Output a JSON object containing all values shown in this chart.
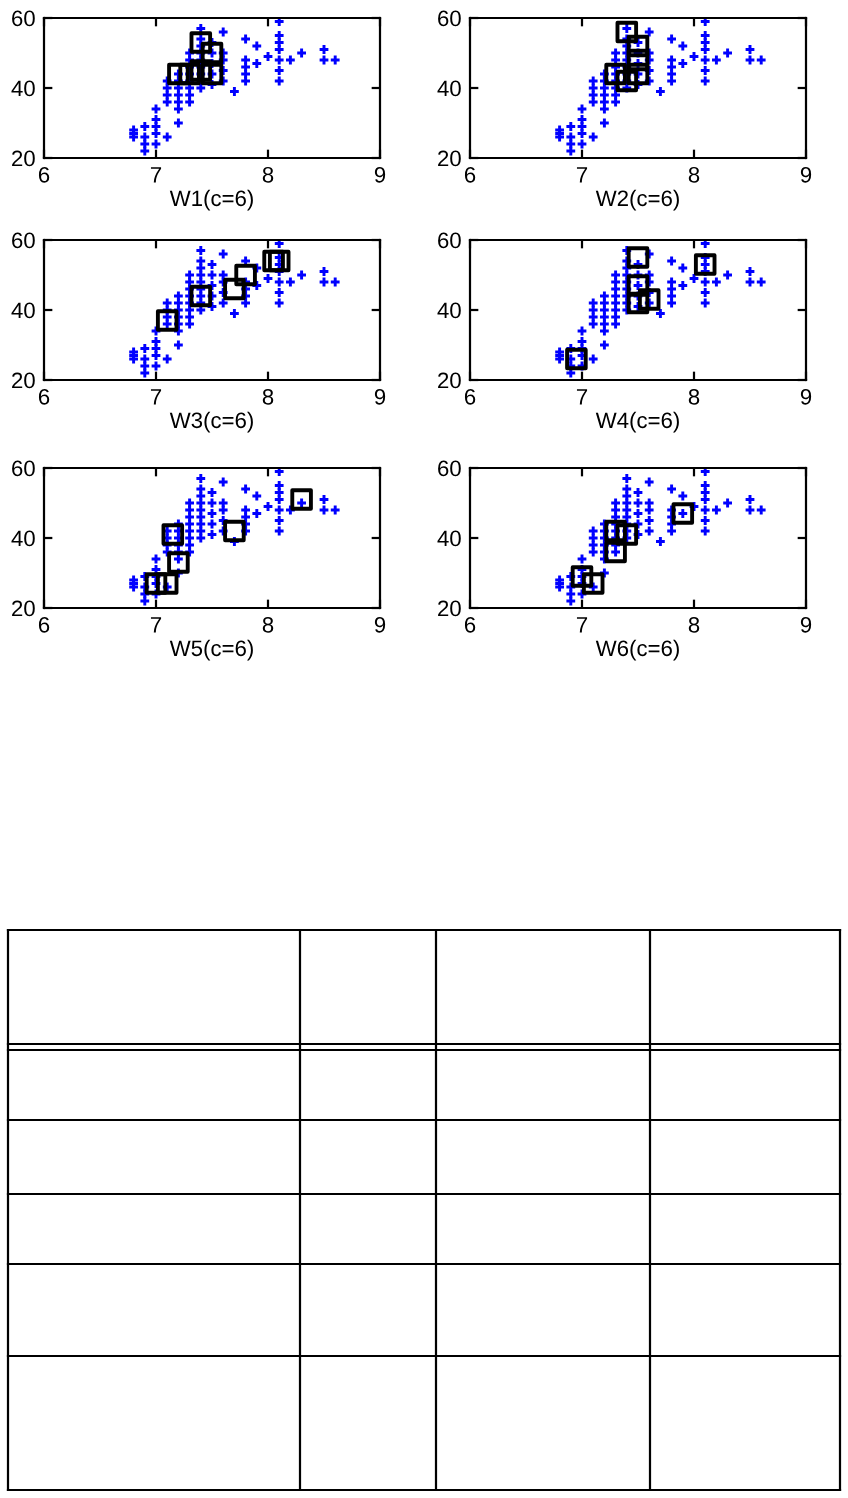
{
  "chart_data": [
    {
      "type": "scatter",
      "xlabel": "W1(c=6)",
      "xlim": [
        6,
        9
      ],
      "ylim": [
        20,
        60
      ],
      "xticks": [
        6,
        7,
        8,
        9
      ],
      "yticks": [
        20,
        40,
        60
      ],
      "grid": false,
      "legend": false,
      "series": [
        {
          "type": "scatter",
          "marker": "cross",
          "color": "#0000ff",
          "x": [
            6.8,
            6.8,
            6.8,
            6.9,
            6.9,
            6.9,
            6.9,
            7.0,
            7.0,
            7.0,
            7.0,
            7.0,
            7.1,
            7.1,
            7.1,
            7.1,
            7.1,
            7.2,
            7.2,
            7.2,
            7.2,
            7.2,
            7.2,
            7.2,
            7.3,
            7.3,
            7.3,
            7.3,
            7.3,
            7.3,
            7.3,
            7.3,
            7.4,
            7.4,
            7.4,
            7.4,
            7.4,
            7.4,
            7.4,
            7.4,
            7.4,
            7.5,
            7.5,
            7.5,
            7.5,
            7.5,
            7.6,
            7.6,
            7.6,
            7.6,
            7.6,
            7.7,
            7.8,
            7.8,
            7.8,
            7.8,
            7.8,
            7.9,
            7.9,
            8.0,
            8.1,
            8.1,
            8.1,
            8.1,
            8.1,
            8.1,
            8.1,
            8.2,
            8.3,
            8.5,
            8.5,
            8.6
          ],
          "values": [
            26,
            27,
            28,
            22,
            24,
            26,
            29,
            24,
            27,
            29,
            31,
            34,
            26,
            36,
            38,
            40,
            42,
            30,
            34,
            36,
            38,
            40,
            42,
            44,
            36,
            38,
            40,
            42,
            44,
            46,
            48,
            50,
            40,
            42,
            44,
            46,
            48,
            50,
            52,
            54,
            57,
            41,
            44,
            47,
            50,
            53,
            42,
            45,
            48,
            50,
            56,
            39,
            42,
            44,
            46,
            48,
            54,
            47,
            52,
            49,
            42,
            45,
            48,
            51,
            53,
            55,
            59,
            48,
            50,
            48,
            51,
            48
          ]
        },
        {
          "type": "scatter",
          "marker": "square",
          "color": "#000000",
          "x": [
            7.4,
            7.5,
            7.2,
            7.3,
            7.4,
            7.5
          ],
          "values": [
            53,
            50,
            44,
            44,
            45,
            44
          ]
        }
      ]
    },
    {
      "type": "scatter",
      "xlabel": "W2(c=6)",
      "xlim": [
        6,
        9
      ],
      "ylim": [
        20,
        60
      ],
      "xticks": [
        6,
        7,
        8,
        9
      ],
      "yticks": [
        20,
        40,
        60
      ],
      "grid": false,
      "legend": false,
      "series": [
        {
          "type": "scatter",
          "marker": "cross",
          "color": "#0000ff",
          "x": [
            6.8,
            6.8,
            6.8,
            6.9,
            6.9,
            6.9,
            6.9,
            7.0,
            7.0,
            7.0,
            7.0,
            7.0,
            7.1,
            7.1,
            7.1,
            7.1,
            7.1,
            7.2,
            7.2,
            7.2,
            7.2,
            7.2,
            7.2,
            7.2,
            7.3,
            7.3,
            7.3,
            7.3,
            7.3,
            7.3,
            7.3,
            7.3,
            7.4,
            7.4,
            7.4,
            7.4,
            7.4,
            7.4,
            7.4,
            7.4,
            7.4,
            7.5,
            7.5,
            7.5,
            7.5,
            7.5,
            7.6,
            7.6,
            7.6,
            7.6,
            7.6,
            7.7,
            7.8,
            7.8,
            7.8,
            7.8,
            7.8,
            7.9,
            7.9,
            8.0,
            8.1,
            8.1,
            8.1,
            8.1,
            8.1,
            8.1,
            8.1,
            8.2,
            8.3,
            8.5,
            8.5,
            8.6
          ],
          "values": [
            26,
            27,
            28,
            22,
            24,
            26,
            29,
            24,
            27,
            29,
            31,
            34,
            26,
            36,
            38,
            40,
            42,
            30,
            34,
            36,
            38,
            40,
            42,
            44,
            36,
            38,
            40,
            42,
            44,
            46,
            48,
            50,
            40,
            42,
            44,
            46,
            48,
            50,
            52,
            54,
            57,
            41,
            44,
            47,
            50,
            53,
            42,
            45,
            48,
            50,
            56,
            39,
            42,
            44,
            46,
            48,
            54,
            47,
            52,
            49,
            42,
            45,
            48,
            51,
            53,
            55,
            59,
            48,
            50,
            48,
            51,
            48
          ]
        },
        {
          "type": "scatter",
          "marker": "square",
          "color": "#000000",
          "x": [
            7.4,
            7.5,
            7.5,
            7.3,
            7.4,
            7.5
          ],
          "values": [
            56,
            52,
            48,
            44,
            42,
            44
          ]
        }
      ]
    },
    {
      "type": "scatter",
      "xlabel": "W3(c=6)",
      "xlim": [
        6,
        9
      ],
      "ylim": [
        20,
        60
      ],
      "xticks": [
        6,
        7,
        8,
        9
      ],
      "yticks": [
        20,
        40,
        60
      ],
      "grid": false,
      "legend": false,
      "series": [
        {
          "type": "scatter",
          "marker": "cross",
          "color": "#0000ff",
          "x": [
            6.8,
            6.8,
            6.8,
            6.9,
            6.9,
            6.9,
            6.9,
            7.0,
            7.0,
            7.0,
            7.0,
            7.0,
            7.1,
            7.1,
            7.1,
            7.1,
            7.1,
            7.2,
            7.2,
            7.2,
            7.2,
            7.2,
            7.2,
            7.2,
            7.3,
            7.3,
            7.3,
            7.3,
            7.3,
            7.3,
            7.3,
            7.3,
            7.4,
            7.4,
            7.4,
            7.4,
            7.4,
            7.4,
            7.4,
            7.4,
            7.4,
            7.5,
            7.5,
            7.5,
            7.5,
            7.5,
            7.6,
            7.6,
            7.6,
            7.6,
            7.6,
            7.7,
            7.8,
            7.8,
            7.8,
            7.8,
            7.8,
            7.9,
            7.9,
            8.0,
            8.1,
            8.1,
            8.1,
            8.1,
            8.1,
            8.1,
            8.1,
            8.2,
            8.3,
            8.5,
            8.5,
            8.6
          ],
          "values": [
            26,
            27,
            28,
            22,
            24,
            26,
            29,
            24,
            27,
            29,
            31,
            34,
            26,
            36,
            38,
            40,
            42,
            30,
            34,
            36,
            38,
            40,
            42,
            44,
            36,
            38,
            40,
            42,
            44,
            46,
            48,
            50,
            40,
            42,
            44,
            46,
            48,
            50,
            52,
            54,
            57,
            41,
            44,
            47,
            50,
            53,
            42,
            45,
            48,
            50,
            56,
            39,
            42,
            44,
            46,
            48,
            54,
            47,
            52,
            49,
            42,
            45,
            48,
            51,
            53,
            55,
            59,
            48,
            50,
            48,
            51,
            48
          ]
        },
        {
          "type": "scatter",
          "marker": "square",
          "color": "#000000",
          "x": [
            7.1,
            7.4,
            7.7,
            7.8,
            8.05,
            8.1
          ],
          "values": [
            37,
            44,
            46,
            50,
            54,
            54
          ]
        }
      ]
    },
    {
      "type": "scatter",
      "xlabel": "W4(c=6)",
      "xlim": [
        6,
        9
      ],
      "ylim": [
        20,
        60
      ],
      "xticks": [
        6,
        7,
        8,
        9
      ],
      "yticks": [
        20,
        40,
        60
      ],
      "grid": false,
      "legend": false,
      "series": [
        {
          "type": "scatter",
          "marker": "cross",
          "color": "#0000ff",
          "x": [
            6.8,
            6.8,
            6.8,
            6.9,
            6.9,
            6.9,
            6.9,
            7.0,
            7.0,
            7.0,
            7.0,
            7.0,
            7.1,
            7.1,
            7.1,
            7.1,
            7.1,
            7.2,
            7.2,
            7.2,
            7.2,
            7.2,
            7.2,
            7.2,
            7.3,
            7.3,
            7.3,
            7.3,
            7.3,
            7.3,
            7.3,
            7.3,
            7.4,
            7.4,
            7.4,
            7.4,
            7.4,
            7.4,
            7.4,
            7.4,
            7.4,
            7.5,
            7.5,
            7.5,
            7.5,
            7.5,
            7.6,
            7.6,
            7.6,
            7.6,
            7.6,
            7.7,
            7.8,
            7.8,
            7.8,
            7.8,
            7.8,
            7.9,
            7.9,
            8.0,
            8.1,
            8.1,
            8.1,
            8.1,
            8.1,
            8.1,
            8.1,
            8.2,
            8.3,
            8.5,
            8.5,
            8.6
          ],
          "values": [
            26,
            27,
            28,
            22,
            24,
            26,
            29,
            24,
            27,
            29,
            31,
            34,
            26,
            36,
            38,
            40,
            42,
            30,
            34,
            36,
            38,
            40,
            42,
            44,
            36,
            38,
            40,
            42,
            44,
            46,
            48,
            50,
            40,
            42,
            44,
            46,
            48,
            50,
            52,
            54,
            57,
            41,
            44,
            47,
            50,
            53,
            42,
            45,
            48,
            50,
            56,
            39,
            42,
            44,
            46,
            48,
            54,
            47,
            52,
            49,
            42,
            45,
            48,
            51,
            53,
            55,
            59,
            48,
            50,
            48,
            51,
            48
          ]
        },
        {
          "type": "scatter",
          "marker": "square",
          "color": "#000000",
          "x": [
            6.95,
            7.5,
            7.5,
            7.5,
            7.6,
            8.1
          ],
          "values": [
            26,
            55,
            47,
            42,
            43,
            53
          ]
        }
      ]
    },
    {
      "type": "scatter",
      "xlabel": "W5(c=6)",
      "xlim": [
        6,
        9
      ],
      "ylim": [
        20,
        60
      ],
      "xticks": [
        6,
        7,
        8,
        9
      ],
      "yticks": [
        20,
        40,
        60
      ],
      "grid": false,
      "legend": false,
      "series": [
        {
          "type": "scatter",
          "marker": "cross",
          "color": "#0000ff",
          "x": [
            6.8,
            6.8,
            6.8,
            6.9,
            6.9,
            6.9,
            6.9,
            7.0,
            7.0,
            7.0,
            7.0,
            7.0,
            7.1,
            7.1,
            7.1,
            7.1,
            7.1,
            7.2,
            7.2,
            7.2,
            7.2,
            7.2,
            7.2,
            7.2,
            7.3,
            7.3,
            7.3,
            7.3,
            7.3,
            7.3,
            7.3,
            7.3,
            7.4,
            7.4,
            7.4,
            7.4,
            7.4,
            7.4,
            7.4,
            7.4,
            7.4,
            7.5,
            7.5,
            7.5,
            7.5,
            7.5,
            7.6,
            7.6,
            7.6,
            7.6,
            7.6,
            7.7,
            7.8,
            7.8,
            7.8,
            7.8,
            7.8,
            7.9,
            7.9,
            8.0,
            8.1,
            8.1,
            8.1,
            8.1,
            8.1,
            8.1,
            8.1,
            8.2,
            8.3,
            8.5,
            8.5,
            8.6
          ],
          "values": [
            26,
            27,
            28,
            22,
            24,
            26,
            29,
            24,
            27,
            29,
            31,
            34,
            26,
            36,
            38,
            40,
            42,
            30,
            34,
            36,
            38,
            40,
            42,
            44,
            36,
            38,
            40,
            42,
            44,
            46,
            48,
            50,
            40,
            42,
            44,
            46,
            48,
            50,
            52,
            54,
            57,
            41,
            44,
            47,
            50,
            53,
            42,
            45,
            48,
            50,
            56,
            39,
            42,
            44,
            46,
            48,
            54,
            47,
            52,
            49,
            42,
            45,
            48,
            51,
            53,
            55,
            59,
            48,
            50,
            48,
            51,
            48
          ]
        },
        {
          "type": "scatter",
          "marker": "square",
          "color": "#000000",
          "x": [
            7.0,
            7.1,
            7.2,
            7.15,
            7.7,
            8.3
          ],
          "values": [
            27,
            27,
            33,
            41,
            42,
            51
          ]
        }
      ]
    },
    {
      "type": "scatter",
      "xlabel": "W6(c=6)",
      "xlim": [
        6,
        9
      ],
      "ylim": [
        20,
        60
      ],
      "xticks": [
        6,
        7,
        8,
        9
      ],
      "yticks": [
        20,
        40,
        60
      ],
      "grid": false,
      "legend": false,
      "series": [
        {
          "type": "scatter",
          "marker": "cross",
          "color": "#0000ff",
          "x": [
            6.8,
            6.8,
            6.8,
            6.9,
            6.9,
            6.9,
            6.9,
            7.0,
            7.0,
            7.0,
            7.0,
            7.0,
            7.1,
            7.1,
            7.1,
            7.1,
            7.1,
            7.2,
            7.2,
            7.2,
            7.2,
            7.2,
            7.2,
            7.2,
            7.3,
            7.3,
            7.3,
            7.3,
            7.3,
            7.3,
            7.3,
            7.3,
            7.4,
            7.4,
            7.4,
            7.4,
            7.4,
            7.4,
            7.4,
            7.4,
            7.4,
            7.5,
            7.5,
            7.5,
            7.5,
            7.5,
            7.6,
            7.6,
            7.6,
            7.6,
            7.6,
            7.7,
            7.8,
            7.8,
            7.8,
            7.8,
            7.8,
            7.9,
            7.9,
            8.0,
            8.1,
            8.1,
            8.1,
            8.1,
            8.1,
            8.1,
            8.1,
            8.2,
            8.3,
            8.5,
            8.5,
            8.6
          ],
          "values": [
            26,
            27,
            28,
            22,
            24,
            26,
            29,
            24,
            27,
            29,
            31,
            34,
            26,
            36,
            38,
            40,
            42,
            30,
            34,
            36,
            38,
            40,
            42,
            44,
            36,
            38,
            40,
            42,
            44,
            46,
            48,
            50,
            40,
            42,
            44,
            46,
            48,
            50,
            52,
            54,
            57,
            41,
            44,
            47,
            50,
            53,
            42,
            45,
            48,
            50,
            56,
            39,
            42,
            44,
            46,
            48,
            54,
            47,
            52,
            49,
            42,
            45,
            48,
            51,
            53,
            55,
            59,
            48,
            50,
            48,
            51,
            48
          ]
        },
        {
          "type": "scatter",
          "marker": "square",
          "color": "#000000",
          "x": [
            7.0,
            7.1,
            7.3,
            7.4,
            7.3,
            7.9
          ],
          "values": [
            29,
            27,
            36,
            41,
            42,
            47
          ]
        }
      ]
    }
  ]
}
